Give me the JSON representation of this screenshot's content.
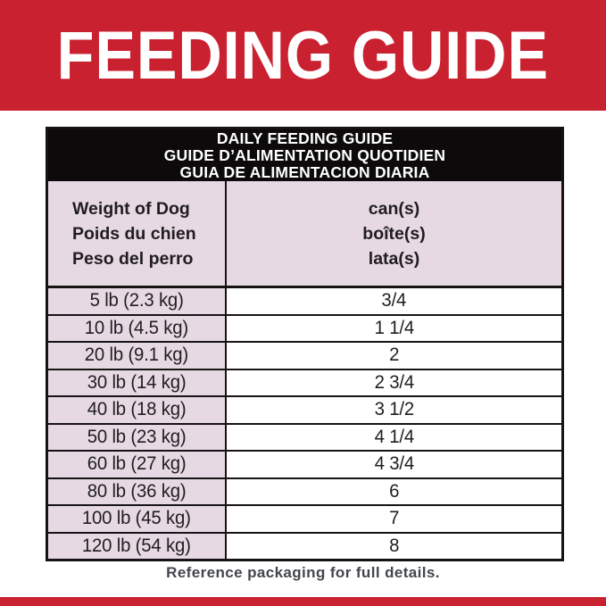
{
  "banner": {
    "title": "FEEDING GUIDE"
  },
  "table": {
    "title_lines": [
      "DAILY FEEDING GUIDE",
      "GUIDE D’ALIMENTATION QUOTIDIEN",
      "GUIA DE ALIMENTACION DIARIA"
    ],
    "weight_header_lines": [
      "Weight of Dog",
      "Poids du chien",
      "Peso del perro"
    ],
    "cans_header_lines": [
      "can(s)",
      "boîte(s)",
      "lata(s)"
    ],
    "rows": [
      {
        "weight": "5 lb (2.3 kg)",
        "cans": "3/4"
      },
      {
        "weight": "10 lb (4.5 kg)",
        "cans": "1 1/4"
      },
      {
        "weight": "20 lb (9.1 kg)",
        "cans": "2"
      },
      {
        "weight": "30 lb (14 kg)",
        "cans": "2 3/4"
      },
      {
        "weight": "40 lb (18 kg)",
        "cans": "3 1/2"
      },
      {
        "weight": "50 lb (23 kg)",
        "cans": "4 1/4"
      },
      {
        "weight": "60 lb (27 kg)",
        "cans": "4 3/4"
      },
      {
        "weight": "80 lb (36 kg)",
        "cans": "6"
      },
      {
        "weight": "100 lb (45 kg)",
        "cans": "7"
      },
      {
        "weight": "120 lb (54 kg)",
        "cans": "8"
      }
    ]
  },
  "footer": {
    "note": "Reference packaging for full details."
  },
  "colors": {
    "brand_red": "#ca2130",
    "header_black": "#0d0a0b",
    "lavender": "#e6d9e3",
    "line_black": "#171314",
    "text_dark": "#211d1e",
    "footnote_gray": "#43464b"
  }
}
